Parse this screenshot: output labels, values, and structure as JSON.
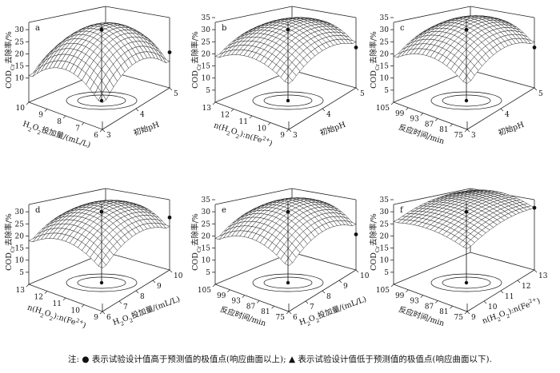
{
  "footnote": "注: ● 表示试验设计值高于预测值的极值点(响应曲面以上); ▲ 表示试验设计值低于预测值的极值点(响应曲面以下).",
  "chart_data": [
    {
      "type": "surface",
      "panel": "a",
      "zlabel": "COD_Cr去除率/%",
      "zlim": [
        0,
        35
      ],
      "zticks": [
        10,
        15,
        20,
        25,
        30
      ],
      "xlabel": "H2O2投加量/(mL/L)",
      "xticks": [
        "10",
        "9",
        "8",
        "7",
        "6"
      ],
      "ylabel": "初始pH",
      "yticks": [
        "3",
        "4",
        "5"
      ],
      "surface_peak": 29,
      "surface_corner_min": 11,
      "points": [
        {
          "marker": "●",
          "value": 30
        },
        {
          "marker": "●",
          "value": 18
        }
      ]
    },
    {
      "type": "surface",
      "panel": "b",
      "zlabel": "COD_Cr去除率/%",
      "zlim": [
        0,
        35
      ],
      "zticks": [
        5,
        10,
        15,
        20,
        25,
        30,
        35
      ],
      "xlabel": "n(H2O2):n(Fe2+)",
      "xticks": [
        "13",
        "12",
        "11",
        "10",
        "9"
      ],
      "ylabel": "初始pH",
      "yticks": [
        "3",
        "4",
        "5"
      ],
      "surface_peak": 30,
      "surface_corner_min": 19,
      "points": [
        {
          "marker": "●",
          "value": 30
        },
        {
          "marker": "●",
          "value": 20
        }
      ]
    },
    {
      "type": "surface",
      "panel": "c",
      "zlabel": "COD_Cr去除率/%",
      "zlim": [
        0,
        35
      ],
      "zticks": [
        5,
        10,
        15,
        20,
        25,
        30,
        35
      ],
      "xlabel": "反应时间/min",
      "xticks": [
        "105",
        "99",
        "93",
        "87",
        "81",
        "75"
      ],
      "ylabel": "初始pH",
      "yticks": [
        "3",
        "4",
        "5"
      ],
      "surface_peak": 31,
      "surface_corner_min": 19,
      "points": [
        {
          "marker": "●",
          "value": 30
        },
        {
          "marker": "●",
          "value": 20
        }
      ]
    },
    {
      "type": "surface",
      "panel": "d",
      "zlabel": "COD_Cr去除率/%",
      "zlim": [
        0,
        35
      ],
      "zticks": [
        5,
        10,
        15,
        20,
        25,
        30
      ],
      "xlabel": "n(H2O2):n(Fe2+)",
      "xticks": [
        "13",
        "12",
        "11",
        "10",
        "9"
      ],
      "ylabel": "H2O2投加量/(mL/L)",
      "yticks": [
        "6",
        "7",
        "8",
        "9",
        "10"
      ],
      "surface_peak": 30,
      "surface_corner_min": 18,
      "points": [
        {
          "marker": "●",
          "value": 30
        },
        {
          "marker": "●",
          "value": 25
        }
      ]
    },
    {
      "type": "surface",
      "panel": "e",
      "zlabel": "COD_Cr去除率/%",
      "zlim": [
        0,
        35
      ],
      "zticks": [
        5,
        10,
        15,
        20,
        25,
        30,
        35
      ],
      "xlabel": "反应时间/min",
      "xticks": [
        "105",
        "99",
        "93",
        "87",
        "81",
        "75"
      ],
      "ylabel": "H2O2投加量/(mL/L)",
      "yticks": [
        "6",
        "7",
        "8",
        "9",
        "10"
      ],
      "surface_peak": 31,
      "surface_corner_min": 19,
      "points": [
        {
          "marker": "●",
          "value": 30
        },
        {
          "marker": "●",
          "value": 18
        }
      ]
    },
    {
      "type": "surface",
      "panel": "f",
      "zlabel": "COD_Cr去除率/%",
      "zlim": [
        0,
        35
      ],
      "zticks": [
        5,
        10,
        15,
        20,
        25,
        30,
        35
      ],
      "xlabel": "反应时间/min",
      "xticks": [
        "105",
        "99",
        "93",
        "87",
        "81",
        "75"
      ],
      "ylabel": "n(H2O2):n(Fe2+)",
      "yticks": [
        "9",
        "10",
        "11",
        "12",
        "13"
      ],
      "surface_peak": 31,
      "surface_corner_min": 26,
      "points": [
        {
          "marker": "●",
          "value": 30
        },
        {
          "marker": "●",
          "value": 29
        }
      ]
    }
  ]
}
